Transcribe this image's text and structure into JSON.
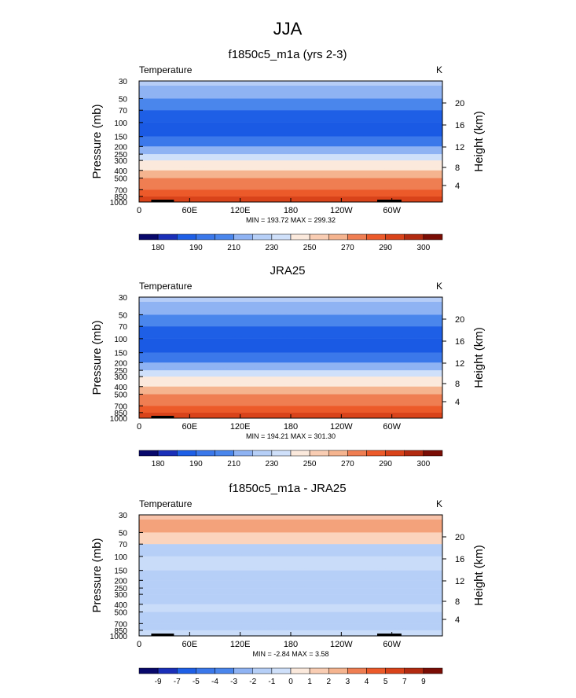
{
  "title": "JJA",
  "chart_data": [
    {
      "type": "heatmap",
      "title": "f1850c5_m1a (yrs 2-3)",
      "variable": "Temperature",
      "units": "K",
      "ylabel_left": "Pressure (mb)",
      "ylabel_right": "Height (km)",
      "pressure_ticks": [
        "30",
        "50",
        "70",
        "100",
        "150",
        "200",
        "250",
        "300",
        "400",
        "500",
        "700",
        "850",
        "1000"
      ],
      "height_ticks": [
        "20",
        "16",
        "12",
        "8",
        "4"
      ],
      "x_ticks": [
        "0",
        "60E",
        "120E",
        "180",
        "120W",
        "60W"
      ],
      "stats": "MIN = 193.72  MAX = 299.32",
      "colorbar_labels": [
        "180",
        "190",
        "210",
        "230",
        "250",
        "270",
        "290",
        "300"
      ],
      "bands": [
        {
          "from": "30",
          "to": "50",
          "color": "#8fb3f3"
        },
        {
          "from": "50",
          "to": "70",
          "color": "#4a86ec"
        },
        {
          "from": "70",
          "to": "100",
          "color": "#1e5fe6"
        },
        {
          "from": "100",
          "to": "150",
          "color": "#1a5ae4"
        },
        {
          "from": "150",
          "to": "200",
          "color": "#3b78ea"
        },
        {
          "from": "200",
          "to": "250",
          "color": "#8fb3f3"
        },
        {
          "from": "250",
          "to": "300",
          "color": "#cfe0fa"
        },
        {
          "from": "300",
          "to": "400",
          "color": "#fbe9dc"
        },
        {
          "from": "400",
          "to": "500",
          "color": "#f5b48f"
        },
        {
          "from": "500",
          "to": "700",
          "color": "#ef7e52"
        },
        {
          "from": "700",
          "to": "850",
          "color": "#ec5a2a"
        },
        {
          "from": "850",
          "to": "1000",
          "color": "#d9431a"
        }
      ]
    },
    {
      "type": "heatmap",
      "title": "JRA25",
      "variable": "Temperature",
      "units": "K",
      "ylabel_left": "Pressure (mb)",
      "ylabel_right": "Height (km)",
      "pressure_ticks": [
        "30",
        "50",
        "70",
        "100",
        "150",
        "200",
        "250",
        "300",
        "400",
        "500",
        "700",
        "850",
        "1000"
      ],
      "height_ticks": [
        "20",
        "16",
        "12",
        "8",
        "4"
      ],
      "x_ticks": [
        "0",
        "60E",
        "120E",
        "180",
        "120W",
        "60W"
      ],
      "stats": "MIN = 194.21  MAX = 301.30",
      "colorbar_labels": [
        "180",
        "190",
        "210",
        "230",
        "250",
        "270",
        "290",
        "300"
      ],
      "bands": [
        {
          "from": "30",
          "to": "50",
          "color": "#8fb3f3"
        },
        {
          "from": "50",
          "to": "70",
          "color": "#4a86ec"
        },
        {
          "from": "70",
          "to": "100",
          "color": "#1e5fe6"
        },
        {
          "from": "100",
          "to": "150",
          "color": "#1a5ae4"
        },
        {
          "from": "150",
          "to": "200",
          "color": "#3b78ea"
        },
        {
          "from": "200",
          "to": "250",
          "color": "#8fb3f3"
        },
        {
          "from": "250",
          "to": "300",
          "color": "#cfe0fa"
        },
        {
          "from": "300",
          "to": "400",
          "color": "#fbe9dc"
        },
        {
          "from": "400",
          "to": "500",
          "color": "#f5b48f"
        },
        {
          "from": "500",
          "to": "700",
          "color": "#ef7e52"
        },
        {
          "from": "700",
          "to": "850",
          "color": "#ec5a2a"
        },
        {
          "from": "850",
          "to": "1000",
          "color": "#d9431a"
        }
      ]
    },
    {
      "type": "heatmap",
      "title": "f1850c5_m1a - JRA25",
      "variable": "Temperature",
      "units": "K",
      "ylabel_left": "Pressure (mb)",
      "ylabel_right": "Height (km)",
      "pressure_ticks": [
        "30",
        "50",
        "70",
        "100",
        "150",
        "200",
        "250",
        "300",
        "400",
        "500",
        "700",
        "850",
        "1000"
      ],
      "height_ticks": [
        "20",
        "16",
        "12",
        "8",
        "4"
      ],
      "x_ticks": [
        "0",
        "60E",
        "120E",
        "180",
        "120W",
        "60W"
      ],
      "stats": "MIN =  -2.84  MAX =   3.58",
      "colorbar_labels": [
        "-9",
        "-7",
        "-5",
        "-4",
        "-3",
        "-2",
        "-1",
        "0",
        "1",
        "2",
        "3",
        "4",
        "5",
        "7",
        "9"
      ],
      "bands": [
        {
          "from": "30",
          "to": "50",
          "color": "#f3a27b"
        },
        {
          "from": "50",
          "to": "70",
          "color": "#fbd4bd"
        },
        {
          "from": "70",
          "to": "100",
          "color": "#b6cff7"
        },
        {
          "from": "100",
          "to": "150",
          "color": "#c9dcf9"
        },
        {
          "from": "150",
          "to": "200",
          "color": "#b6cff7"
        },
        {
          "from": "200",
          "to": "250",
          "color": "#b6cff7"
        },
        {
          "from": "250",
          "to": "300",
          "color": "#b6cff7"
        },
        {
          "from": "300",
          "to": "400",
          "color": "#b6cff7"
        },
        {
          "from": "400",
          "to": "500",
          "color": "#c9dcf9"
        },
        {
          "from": "500",
          "to": "700",
          "color": "#b6cff7"
        },
        {
          "from": "700",
          "to": "850",
          "color": "#b6cff7"
        },
        {
          "from": "850",
          "to": "1000",
          "color": "#c9dcf9"
        }
      ]
    }
  ],
  "colors": {
    "colorbar_abs": [
      "#08086b",
      "#1a2fb8",
      "#1e5fe6",
      "#3b78ea",
      "#4a86ec",
      "#8fb3f3",
      "#b6cff7",
      "#cfe0fa",
      "#fbe9dc",
      "#f9cdb3",
      "#f5b48f",
      "#ef7e52",
      "#ec5a2a",
      "#d9431a",
      "#b22a10",
      "#7a0d05"
    ],
    "colorbar_diff": [
      "#08086b",
      "#1a2fb8",
      "#1e5fe6",
      "#3b78ea",
      "#4a86ec",
      "#8fb3f3",
      "#b6cff7",
      "#cfe0fa",
      "#fbe9dc",
      "#f9cdb3",
      "#f5b48f",
      "#ef7e52",
      "#ec5a2a",
      "#d9431a",
      "#b22a10",
      "#7a0d05"
    ],
    "land": "#000000"
  }
}
